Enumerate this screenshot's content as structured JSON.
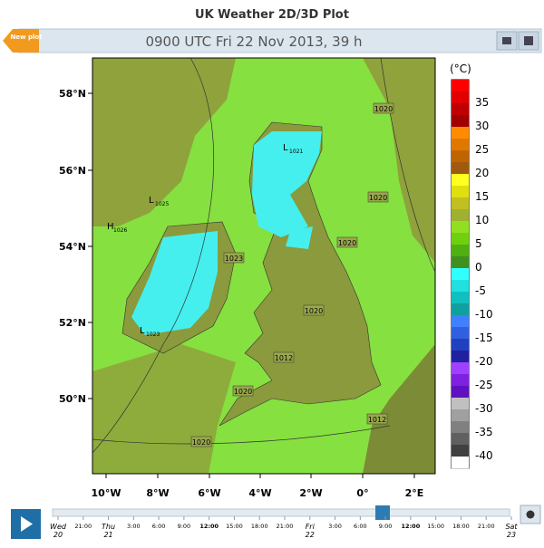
{
  "header": {
    "title": "UK Weather 2D/3D Plot",
    "new_plot": "New plot",
    "valid_time": "0900 UTC Fri 22 Nov 2013, 39 h"
  },
  "map": {
    "lat_labels": [
      "58°N",
      "56°N",
      "54°N",
      "52°N",
      "50°N"
    ],
    "lon_labels": [
      "10°W",
      "8°W",
      "6°W",
      "4°W",
      "2°W",
      "0°",
      "2°E"
    ],
    "isobar_labels": [
      "1020",
      "1020",
      "1020",
      "1020",
      "1020",
      "1012",
      "1020",
      "1023",
      "1012"
    ],
    "pressure_centres": [
      {
        "kind": "L",
        "value": "1021"
      },
      {
        "kind": "L",
        "value": "1025"
      },
      {
        "kind": "H",
        "value": "1026"
      },
      {
        "kind": "L",
        "value": "1023"
      }
    ]
  },
  "colorbar": {
    "unit": "(°C)",
    "labels": [
      "35",
      "30",
      "25",
      "20",
      "15",
      "10",
      "5",
      "0",
      "-5",
      "-10",
      "-15",
      "-20",
      "-25",
      "-30",
      "-35",
      "-40"
    ]
  },
  "timeline": {
    "labels": [
      {
        "day": "Wed",
        "date": "20"
      },
      "21:00",
      {
        "day": "Thu",
        "date": "21"
      },
      "3:00",
      "6:00",
      "9:00",
      "12:00",
      "15:00",
      "18:00",
      "21:00",
      {
        "day": "Fri",
        "date": "22"
      },
      "3:00",
      "6:00",
      "9:00",
      "12:00",
      "15:00",
      "18:00",
      "21:00",
      {
        "day": "Sat",
        "date": "23"
      }
    ]
  }
}
